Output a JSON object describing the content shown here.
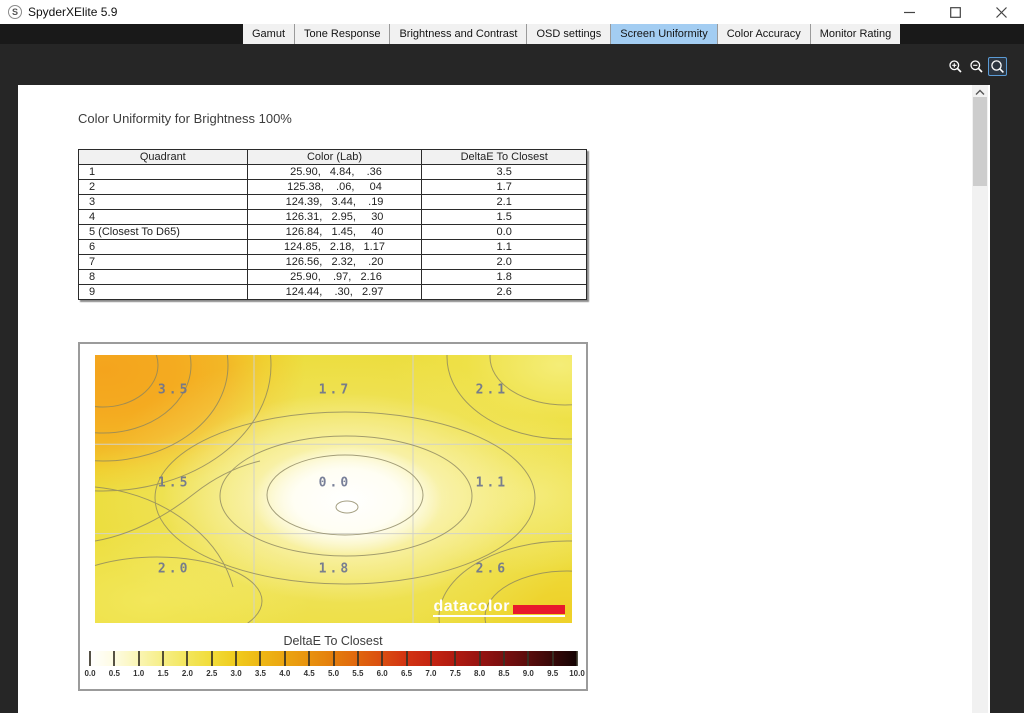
{
  "window": {
    "icon_letter": "S",
    "title": "SpyderXElite 5.9",
    "controls": {
      "minimize": "minimize",
      "maximize": "maximize",
      "close": "close"
    }
  },
  "tabs": {
    "active_color": "#a3cdf2",
    "items": [
      {
        "label": "Gamut",
        "active": false
      },
      {
        "label": "Tone Response",
        "active": false
      },
      {
        "label": "Brightness and Contrast",
        "active": false
      },
      {
        "label": "OSD settings",
        "active": false
      },
      {
        "label": "Screen Uniformity",
        "active": true
      },
      {
        "label": "Color Accuracy",
        "active": false
      },
      {
        "label": "Monitor Rating",
        "active": false
      }
    ]
  },
  "toolbar": {
    "buttons": [
      {
        "name": "zoom-in",
        "active": false
      },
      {
        "name": "zoom-out",
        "active": false
      },
      {
        "name": "zoom-fit",
        "active": true
      }
    ]
  },
  "page": {
    "title": "Color Uniformity for Brightness 100%",
    "table": {
      "headers": [
        "Quadrant",
        "Color (Lab)",
        "DeltaE To Closest"
      ],
      "rows": [
        {
          "quadrant": "1",
          "lab": " 25.90,   4.84,    .36",
          "delta": "3.5"
        },
        {
          "quadrant": "2",
          "lab": "125.38,    .06,     04",
          "delta": "1.7"
        },
        {
          "quadrant": "3",
          "lab": "124.39,   3.44,    .19",
          "delta": "2.1"
        },
        {
          "quadrant": "4",
          "lab": "126.31,   2.95,     30",
          "delta": "1.5"
        },
        {
          "quadrant": "5 (Closest To D65)",
          "lab": "126.84,   1.45,     40",
          "delta": "0.0"
        },
        {
          "quadrant": "6",
          "lab": "124.85,   2.18,   1.17",
          "delta": "1.1"
        },
        {
          "quadrant": "7",
          "lab": "126.56,   2.32,    .20",
          "delta": "2.0"
        },
        {
          "quadrant": "8",
          "lab": " 25.90,    .97,   2.16",
          "delta": "1.8"
        },
        {
          "quadrant": "9",
          "lab": "124.44,    .30,   2.97",
          "delta": "2.6"
        }
      ]
    },
    "chart_data": {
      "type": "heatmap",
      "title": "Color Uniformity for Brightness 100%",
      "quadrant_values": [
        [
          3.5,
          1.7,
          2.1
        ],
        [
          1.5,
          0.0,
          1.1
        ],
        [
          2.0,
          1.8,
          2.6
        ]
      ],
      "scale": {
        "label": "DeltaE To Closest",
        "min": 0.0,
        "max": 10.0,
        "step": 0.5,
        "tick_labels": [
          "0.0",
          "0.5",
          "1.0",
          "1.5",
          "2.0",
          "2.5",
          "3.0",
          "3.5",
          "4.0",
          "4.5",
          "5.0",
          "5.5",
          "6.0",
          "6.5",
          "7.0",
          "7.5",
          "8.0",
          "8.5",
          "9.0",
          "9.5",
          "10.0"
        ],
        "colors": [
          "#ffffff",
          "#fdfbe2",
          "#faf5b4",
          "#f6ee85",
          "#f3e65c",
          "#f1dc38",
          "#f0cb1d",
          "#eeb815",
          "#eba511",
          "#e8920e",
          "#e47d0c",
          "#e0660e",
          "#da4d10",
          "#d23312",
          "#c52411",
          "#b01a10",
          "#971310",
          "#7a0f0f",
          "#5a0c0c",
          "#380808",
          "#140303"
        ]
      },
      "brand": {
        "text": "datacolor",
        "accent": "#e8192c"
      }
    }
  }
}
